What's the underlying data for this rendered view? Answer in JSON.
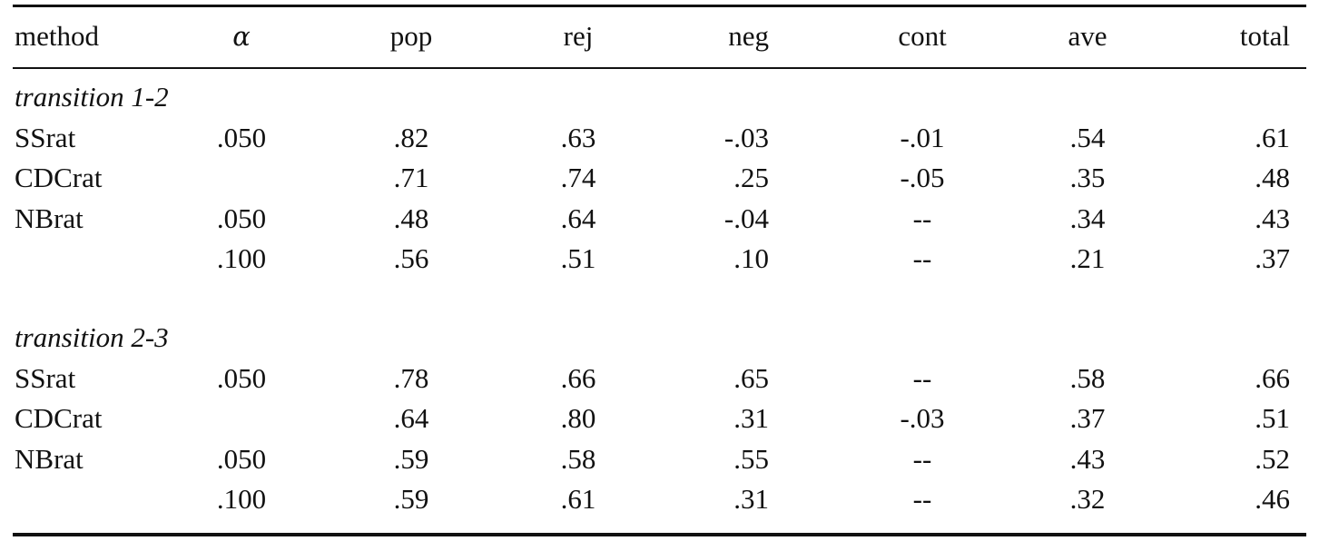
{
  "headers": {
    "method": "method",
    "alpha": "α",
    "pop": "pop",
    "rej": "rej",
    "neg": "neg",
    "cont": "cont",
    "ave": "ave",
    "total": "total"
  },
  "sections": [
    {
      "title": "transition 1-2",
      "rows": [
        {
          "method": "SSrat",
          "alpha": ".050",
          "pop": ".82",
          "rej": ".63",
          "neg": "-.03",
          "cont": "-.01",
          "ave": ".54",
          "total": ".61"
        },
        {
          "method": "CDCrat",
          "alpha": "",
          "pop": ".71",
          "rej": ".74",
          "neg": ".25",
          "cont": "-.05",
          "ave": ".35",
          "total": ".48"
        },
        {
          "method": "NBrat",
          "alpha": ".050",
          "pop": ".48",
          "rej": ".64",
          "neg": "-.04",
          "cont": "--",
          "ave": ".34",
          "total": ".43"
        },
        {
          "method": "",
          "alpha": ".100",
          "pop": ".56",
          "rej": ".51",
          "neg": ".10",
          "cont": "--",
          "ave": ".21",
          "total": ".37"
        }
      ]
    },
    {
      "title": "transition 2-3",
      "rows": [
        {
          "method": "SSrat",
          "alpha": ".050",
          "pop": ".78",
          "rej": ".66",
          "neg": ".65",
          "cont": "--",
          "ave": ".58",
          "total": ".66"
        },
        {
          "method": "CDCrat",
          "alpha": "",
          "pop": ".64",
          "rej": ".80",
          "neg": ".31",
          "cont": "-.03",
          "ave": ".37",
          "total": ".51"
        },
        {
          "method": "NBrat",
          "alpha": ".050",
          "pop": ".59",
          "rej": ".58",
          "neg": ".55",
          "cont": "--",
          "ave": ".43",
          "total": ".52"
        },
        {
          "method": "",
          "alpha": ".100",
          "pop": ".59",
          "rej": ".61",
          "neg": ".31",
          "cont": "--",
          "ave": ".32",
          "total": ".46"
        }
      ]
    }
  ]
}
